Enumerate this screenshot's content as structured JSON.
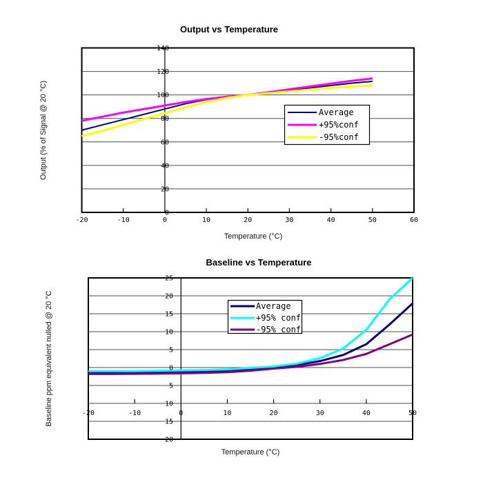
{
  "page": {
    "background": "#ffffff"
  },
  "chart_data": [
    {
      "type": "line",
      "title": "Output vs Temperature",
      "xlabel": "Temperature (°C)",
      "ylabel": "Output (% of Signal @ 20 °C)",
      "xlim": [
        -20,
        60
      ],
      "ylim": [
        0,
        140
      ],
      "grid": true,
      "grid_color": "#4d4d4d",
      "border_color": "#000000",
      "x_ticks": [
        {
          "v": -20,
          "label": "-20"
        },
        {
          "v": -10,
          "label": "-10"
        },
        {
          "v": 0,
          "label": "0"
        },
        {
          "v": 10,
          "label": "10"
        },
        {
          "v": 20,
          "label": "20"
        },
        {
          "v": 30,
          "label": "30"
        },
        {
          "v": 40,
          "label": "40"
        },
        {
          "v": 50,
          "label": "50"
        },
        {
          "v": 60,
          "label": "60"
        }
      ],
      "y_ticks": [
        {
          "v": 0,
          "label": "0"
        },
        {
          "v": 20,
          "label": "20"
        },
        {
          "v": 40,
          "label": "40"
        },
        {
          "v": 60,
          "label": "60"
        },
        {
          "v": 80,
          "label": "80"
        },
        {
          "v": 100,
          "label": "100"
        },
        {
          "v": 120,
          "label": "120"
        },
        {
          "v": 140,
          "label": "140"
        }
      ],
      "x": [
        -20,
        -15,
        -10,
        -5,
        0,
        5,
        10,
        15,
        20,
        25,
        30,
        35,
        40,
        45,
        50
      ],
      "series": [
        {
          "name": "Average",
          "color": "#000080",
          "width": 2,
          "values": [
            70,
            74.5,
            79,
            83.5,
            88,
            92.5,
            96,
            98.5,
            100,
            102,
            104,
            106,
            108,
            110,
            111.5
          ]
        },
        {
          "name": "+95%conf",
          "color": "#FF00FF",
          "width": 3,
          "values": [
            78,
            81.5,
            85,
            88,
            91,
            94,
            96.5,
            98.5,
            100,
            102.3,
            104.8,
            107.2,
            109.6,
            112,
            114
          ]
        },
        {
          "name": "-95%conf",
          "color": "#FFFF00",
          "width": 3,
          "values": [
            65,
            69.5,
            74.5,
            79.5,
            84.5,
            89.5,
            94,
            97.5,
            100,
            101.5,
            103,
            104.5,
            106,
            107.2,
            108.2
          ]
        }
      ],
      "legend": {
        "position": "middle-right",
        "items": [
          "Average",
          "+95%conf",
          "-95%conf"
        ]
      }
    },
    {
      "type": "line",
      "title": "Baseline vs Temperature",
      "xlabel": "Temperature (°C)",
      "ylabel": "Baseline ppm equivalent nulled @ 20 °C",
      "xlim": [
        -20,
        50
      ],
      "ylim": [
        -20,
        25
      ],
      "grid": true,
      "grid_color": "#4d4d4d",
      "border_color": "#000000",
      "x_ticks": [
        {
          "v": -20,
          "label": "-20"
        },
        {
          "v": -10,
          "label": "-10"
        },
        {
          "v": 0,
          "label": "0"
        },
        {
          "v": 10,
          "label": "10"
        },
        {
          "v": 20,
          "label": "20"
        },
        {
          "v": 30,
          "label": "30"
        },
        {
          "v": 40,
          "label": "40"
        },
        {
          "v": 50,
          "label": "50"
        }
      ],
      "y_ticks": [
        {
          "v": 25,
          "label": "25"
        },
        {
          "v": 20,
          "label": "20"
        },
        {
          "v": 15,
          "label": "15"
        },
        {
          "v": 10,
          "label": "10"
        },
        {
          "v": 5,
          "label": "5"
        },
        {
          "v": 0,
          "label": "0"
        },
        {
          "v": -5,
          "label": "5"
        },
        {
          "v": -10,
          "label": "10"
        },
        {
          "v": -15,
          "label": "15"
        },
        {
          "v": -20,
          "label": "20"
        }
      ],
      "x": [
        -20,
        -15,
        -10,
        -5,
        0,
        5,
        10,
        15,
        20,
        25,
        30,
        35,
        40,
        45,
        50
      ],
      "series": [
        {
          "name": "Average",
          "color": "#000080",
          "width": 3,
          "values": [
            -1.4,
            -1.4,
            -1.35,
            -1.3,
            -1.2,
            -1.1,
            -0.9,
            -0.5,
            0,
            0.7,
            1.8,
            3.5,
            6.5,
            12,
            17.9
          ]
        },
        {
          "name": "+95% conf",
          "color": "#00FFFF",
          "width": 3,
          "values": [
            -1.0,
            -1.0,
            -1.0,
            -0.9,
            -0.8,
            -0.7,
            -0.5,
            -0.1,
            0.3,
            1.1,
            2.6,
            5.3,
            10.5,
            19,
            25
          ]
        },
        {
          "name": "-95% conf",
          "color": "#800080",
          "width": 3,
          "values": [
            -1.8,
            -1.8,
            -1.75,
            -1.7,
            -1.6,
            -1.5,
            -1.3,
            -0.9,
            -0.3,
            0.2,
            1.0,
            2.1,
            3.8,
            6.5,
            9.2
          ]
        }
      ],
      "legend": {
        "position": "top-center",
        "items": [
          "Average",
          "+95% conf",
          "-95% conf"
        ]
      }
    }
  ]
}
